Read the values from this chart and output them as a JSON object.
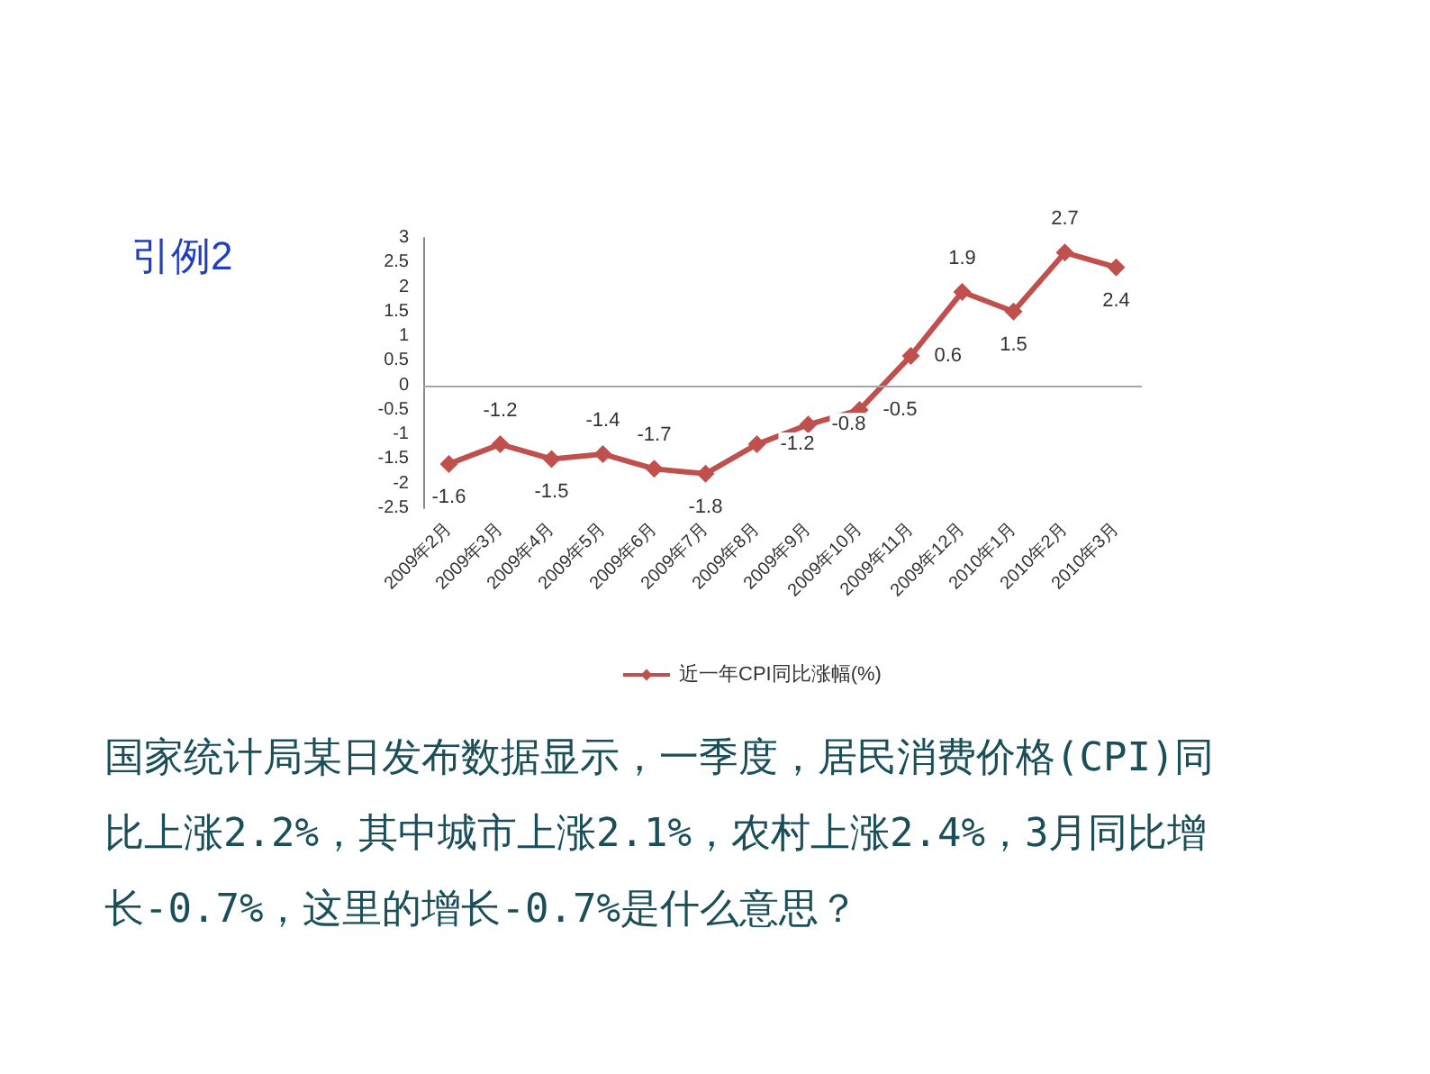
{
  "chart_data": {
    "type": "line",
    "title": "引例2",
    "categories": [
      "2009年2月",
      "2009年3月",
      "2009年4月",
      "2009年5月",
      "2009年6月",
      "2009年7月",
      "2009年8月",
      "2009年9月",
      "2009年10月",
      "2009年11月",
      "2009年12月",
      "2010年1月",
      "2010年2月",
      "2010年3月"
    ],
    "series": [
      {
        "name": "近一年CPI同比涨幅(%)",
        "color": "#c0504d",
        "values": [
          -1.6,
          -1.2,
          -1.5,
          -1.4,
          -1.7,
          -1.8,
          -1.2,
          -0.8,
          -0.5,
          0.6,
          1.9,
          1.5,
          2.7,
          2.4
        ]
      }
    ],
    "ylim": [
      -2.5,
      3
    ],
    "yticks": [
      -2.5,
      -2,
      -1.5,
      -1,
      -0.5,
      0,
      0.5,
      1,
      1.5,
      2,
      2.5,
      3
    ],
    "ref_lines": [
      {
        "axis": "y",
        "value": 0,
        "color": "#a6a6a6"
      }
    ],
    "data_labels": true,
    "marker": "diamond",
    "line_style": "solid",
    "grid": false,
    "legend": "bottom",
    "annotations": [
      "国家统计局某日发布数据显示，一季度，居民消费价格(CPI)同比上涨2.2%，其中城市上涨2.1%，农村上涨2.4%，3月同比增长-0.7%，这里的增长-0.7%是什么意思？"
    ]
  }
}
